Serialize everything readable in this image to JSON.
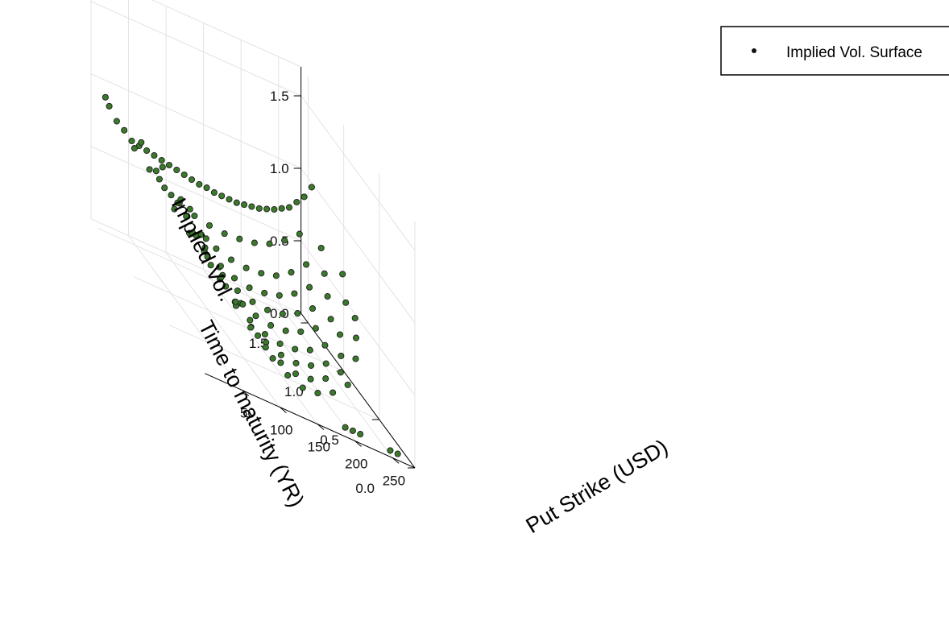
{
  "chart_data": {
    "type": "scatter",
    "title": "",
    "legend": {
      "entries": [
        "Implied Vol. Surface"
      ],
      "placement": "top-right"
    },
    "axes": {
      "x": {
        "label": "Put Strike (USD)",
        "ticks": [
          "50",
          "100",
          "150",
          "200",
          "250"
        ]
      },
      "y": {
        "label": "Time to maturity (YR)",
        "ticks": [
          "0.0",
          "0.5",
          "1.0",
          "1.5"
        ]
      },
      "z": {
        "label": "Implied Vol.",
        "ticks": [
          "0.0",
          "0.5",
          "1.0",
          "1.5"
        ]
      }
    },
    "colors": {
      "marker": "#3a7a2a",
      "marker_edge": "#1f1f1f"
    },
    "grid": true,
    "series": [
      {
        "name": "Implied Vol. Surface",
        "maturities": [
          {
            "t": 1.45,
            "strikes": [
              5,
              10,
              20,
              30,
              40,
              50,
              60,
              70,
              80,
              90,
              100,
              110,
              120,
              130,
              140,
              150,
              160,
              170,
              180,
              190,
              200,
              210,
              220,
              230,
              240,
              250,
              260,
              270,
              280
            ],
            "iv": [
              0.95,
              0.9,
              0.82,
              0.78,
              0.73,
              0.72,
              0.71,
              0.7,
              0.69,
              0.68,
              0.67,
              0.66,
              0.65,
              0.64,
              0.64,
              0.63,
              0.63,
              0.63,
              0.63,
              0.64,
              0.65,
              0.66,
              0.68,
              0.7,
              0.73,
              0.76,
              0.82,
              0.88,
              0.97
            ]
          },
          {
            "t": 1.2,
            "strikes": [
              20,
              40,
              60,
              80,
              100,
              120,
              140,
              160,
              180,
              200,
              220,
              240
            ],
            "iv": [
              0.8,
              0.7,
              0.62,
              0.56,
              0.52,
              0.5,
              0.49,
              0.5,
              0.52,
              0.56,
              0.63,
              0.72
            ]
          },
          {
            "t": 1.0,
            "strikes": [
              10,
              30,
              50,
              70,
              90,
              110,
              130,
              150,
              170,
              190,
              210,
              230,
              250
            ],
            "iv": [
              0.95,
              0.8,
              0.68,
              0.58,
              0.5,
              0.45,
              0.42,
              0.41,
              0.42,
              0.45,
              0.52,
              0.62,
              0.78
            ]
          },
          {
            "t": 0.85,
            "strikes": [
              20,
              40,
              60,
              80,
              100,
              120,
              140,
              160,
              180,
              200,
              220,
              240
            ],
            "iv": [
              0.82,
              0.66,
              0.54,
              0.46,
              0.4,
              0.37,
              0.35,
              0.36,
              0.39,
              0.45,
              0.54,
              0.68
            ]
          },
          {
            "t": 0.7,
            "strikes": [
              10,
              30,
              50,
              70,
              90,
              110,
              130,
              150,
              170,
              190,
              210,
              230,
              250
            ],
            "iv": [
              0.98,
              0.78,
              0.62,
              0.5,
              0.42,
              0.36,
              0.33,
              0.32,
              0.34,
              0.39,
              0.47,
              0.6,
              0.8
            ]
          },
          {
            "t": 0.55,
            "strikes": [
              20,
              40,
              60,
              80,
              100,
              120,
              140,
              160,
              180,
              200,
              220,
              240
            ],
            "iv": [
              0.88,
              0.68,
              0.52,
              0.42,
              0.35,
              0.31,
              0.29,
              0.3,
              0.34,
              0.41,
              0.52,
              0.68
            ]
          },
          {
            "t": 0.42,
            "strikes": [
              20,
              40,
              60,
              80,
              100,
              120,
              140,
              160,
              180,
              200,
              220,
              240
            ],
            "iv": [
              0.9,
              0.68,
              0.51,
              0.4,
              0.32,
              0.27,
              0.25,
              0.26,
              0.3,
              0.38,
              0.5,
              0.66
            ]
          },
          {
            "t": 0.3,
            "strikes": [
              30,
              50,
              70,
              90,
              110,
              130,
              150,
              170,
              190,
              210,
              230
            ],
            "iv": [
              0.8,
              0.58,
              0.43,
              0.33,
              0.27,
              0.23,
              0.22,
              0.25,
              0.31,
              0.41,
              0.58
            ]
          },
          {
            "t": 0.2,
            "strikes": [
              40,
              60,
              80,
              100,
              120,
              140,
              160,
              180,
              200,
              220
            ],
            "iv": [
              0.7,
              0.5,
              0.37,
              0.28,
              0.22,
              0.19,
              0.2,
              0.25,
              0.34,
              0.48
            ]
          },
          {
            "t": 0.1,
            "strikes": [
              60,
              80,
              100,
              120,
              140,
              160,
              180,
              200
            ],
            "iv": [
              0.55,
              0.38,
              0.27,
              0.2,
              0.16,
              0.17,
              0.22,
              0.32
            ]
          },
          {
            "t": 0.03,
            "strikes": [
              190,
              200,
              210,
              250,
              260
            ],
            "iv": [
              0.05,
              0.05,
              0.05,
              0.03,
              0.03
            ]
          }
        ]
      }
    ]
  }
}
